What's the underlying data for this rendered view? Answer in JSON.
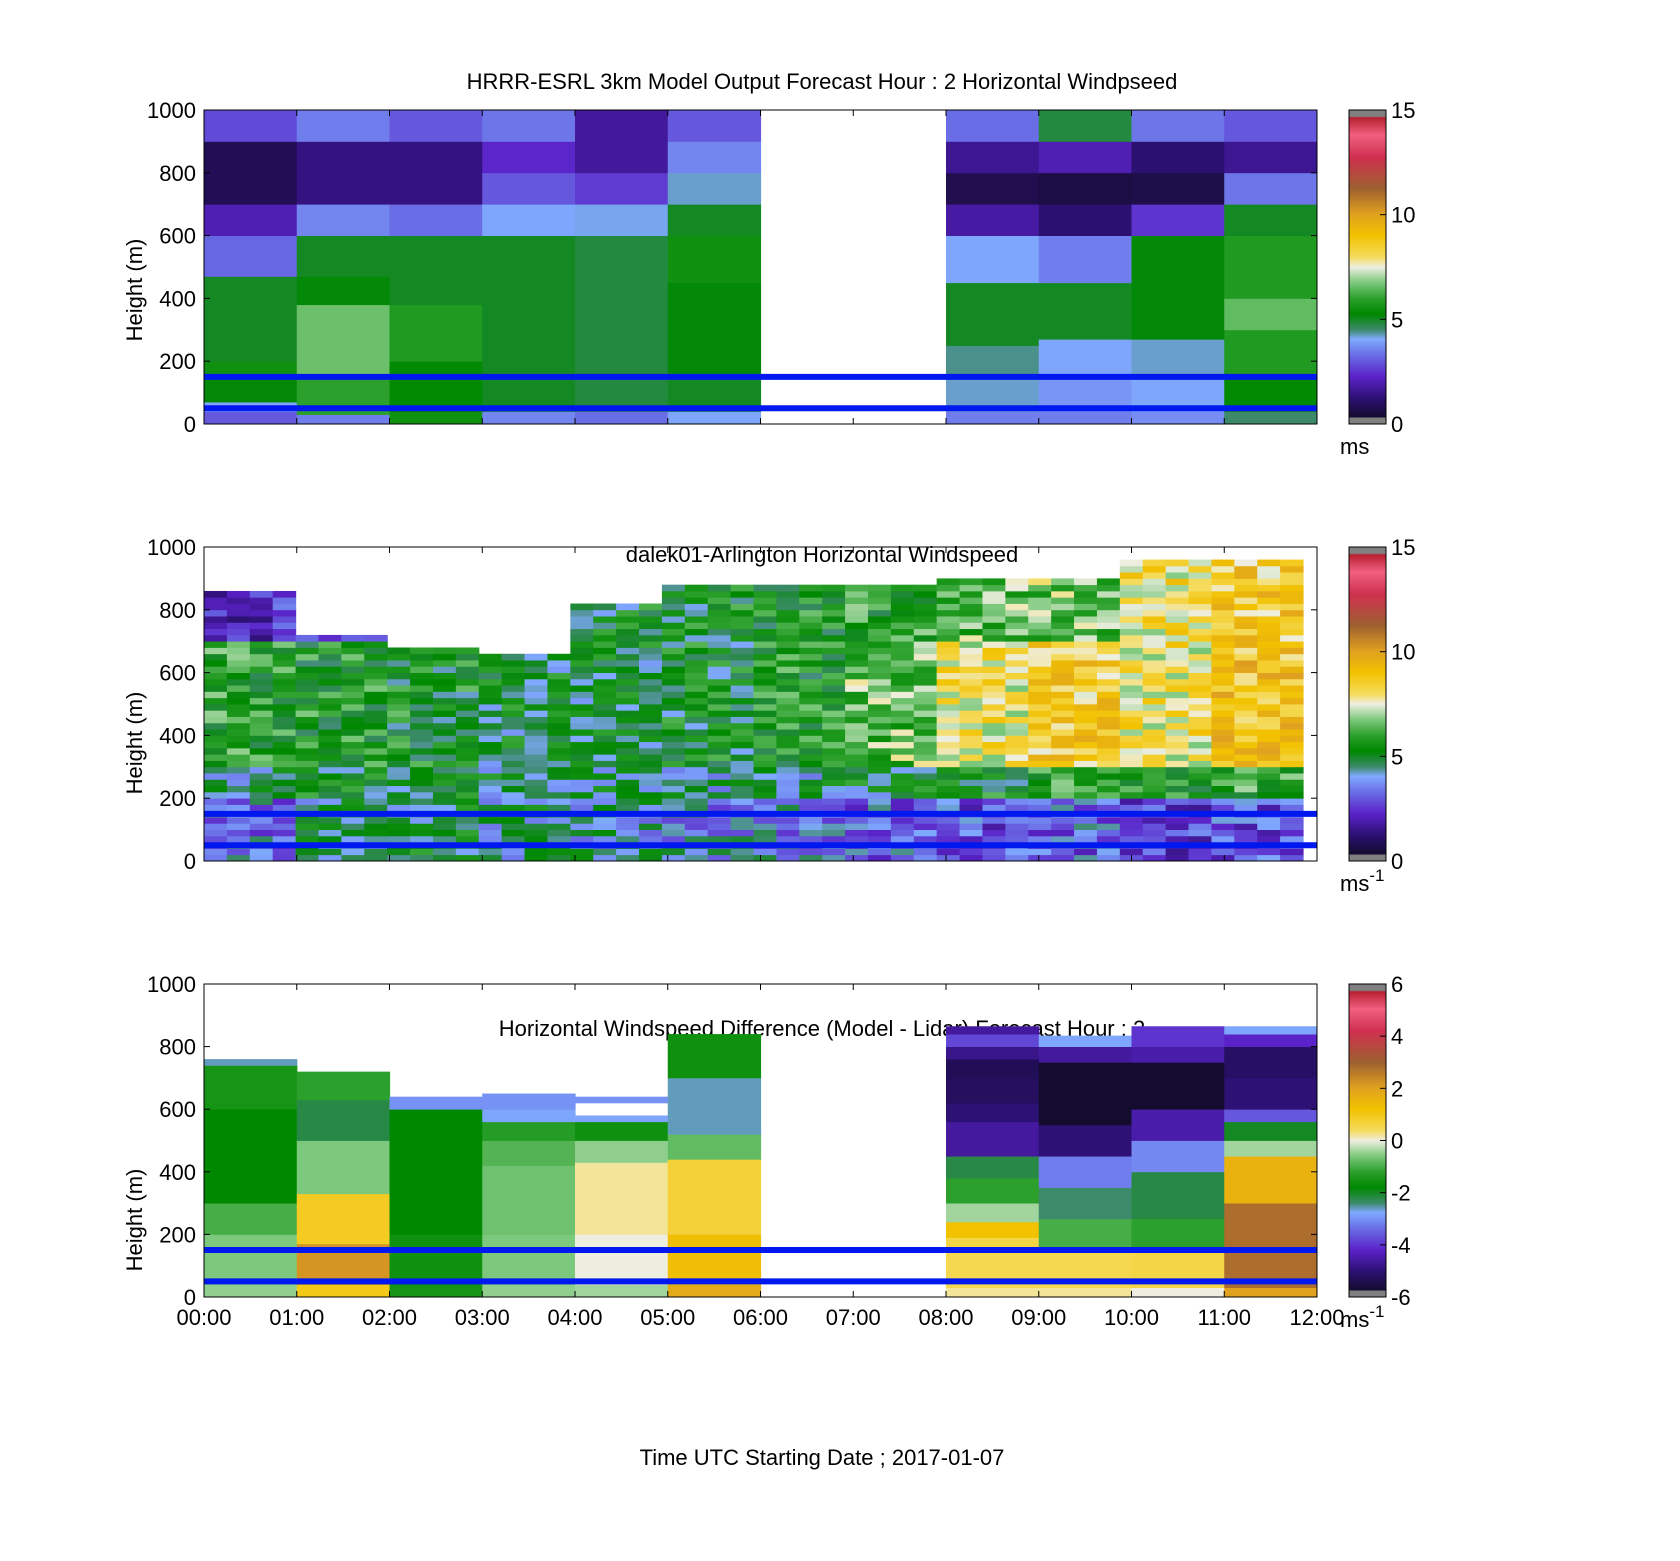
{
  "chart_data": [
    {
      "type": "heatmap",
      "title": "HRRR-ESRL 3km Model Output   Forecast Hour : 2 Horizontal Windpseed",
      "ylabel": "Height (m)",
      "xlabel": "",
      "ylim": [
        0,
        1000
      ],
      "yticks": [
        "0",
        "200",
        "400",
        "600",
        "800",
        "1000"
      ],
      "xticks": [],
      "colorbar": {
        "ticks": [
          "0",
          "5",
          "10",
          "15"
        ],
        "unit_base": "ms",
        "unit_sup": "",
        "range": [
          0,
          15
        ]
      },
      "reference_lines_m": [
        150,
        50
      ],
      "hours": [
        0,
        1,
        2,
        3,
        4,
        5,
        6,
        7,
        8,
        9,
        10,
        11
      ],
      "missing_hours": [
        6,
        7
      ],
      "columns": [
        [
          [
            0,
            40,
            3.0
          ],
          [
            40,
            70,
            4.0
          ],
          [
            70,
            150,
            5.2
          ],
          [
            150,
            200,
            5.5
          ],
          [
            200,
            470,
            5.0
          ],
          [
            470,
            600,
            3.2
          ],
          [
            600,
            700,
            2.0
          ],
          [
            700,
            900,
            0.7
          ],
          [
            900,
            1000,
            2.8
          ]
        ],
        [
          [
            0,
            30,
            3.5
          ],
          [
            30,
            150,
            6.0
          ],
          [
            150,
            380,
            6.6
          ],
          [
            380,
            470,
            5.2
          ],
          [
            470,
            600,
            5.0
          ],
          [
            600,
            700,
            3.6
          ],
          [
            700,
            900,
            1.4
          ],
          [
            900,
            1000,
            3.5
          ]
        ],
        [
          [
            0,
            40,
            5.5
          ],
          [
            40,
            200,
            5.3
          ],
          [
            200,
            380,
            5.8
          ],
          [
            380,
            600,
            5.0
          ],
          [
            600,
            700,
            3.3
          ],
          [
            700,
            900,
            1.4
          ],
          [
            900,
            1000,
            3.0
          ]
        ],
        [
          [
            0,
            40,
            3.6
          ],
          [
            40,
            150,
            5.0
          ],
          [
            150,
            600,
            5.0
          ],
          [
            600,
            700,
            4.0
          ],
          [
            700,
            800,
            3.0
          ],
          [
            800,
            900,
            2.3
          ],
          [
            900,
            1000,
            3.4
          ]
        ],
        [
          [
            0,
            40,
            3.3
          ],
          [
            40,
            150,
            4.8
          ],
          [
            150,
            600,
            4.8
          ],
          [
            600,
            700,
            4.1
          ],
          [
            700,
            800,
            2.6
          ],
          [
            800,
            900,
            1.7
          ],
          [
            900,
            1000,
            1.7
          ]
        ],
        [
          [
            0,
            40,
            4.0
          ],
          [
            40,
            150,
            5.0
          ],
          [
            150,
            450,
            5.2
          ],
          [
            450,
            600,
            5.5
          ],
          [
            600,
            700,
            5.0
          ],
          [
            700,
            800,
            4.2
          ],
          [
            800,
            900,
            3.6
          ],
          [
            900,
            1000,
            3.0
          ]
        ],
        [
          [
            0,
            40,
            3.5
          ],
          [
            40,
            150,
            4.2
          ],
          [
            150,
            250,
            4.4
          ],
          [
            250,
            450,
            5.0
          ],
          [
            450,
            600,
            4.0
          ],
          [
            600,
            700,
            1.8
          ],
          [
            700,
            800,
            0.6
          ],
          [
            800,
            900,
            1.6
          ],
          [
            900,
            1000,
            3.3
          ]
        ],
        [
          [
            0,
            40,
            3.5
          ],
          [
            40,
            150,
            3.8
          ],
          [
            150,
            270,
            4.0
          ],
          [
            270,
            450,
            5.0
          ],
          [
            450,
            600,
            3.5
          ],
          [
            600,
            700,
            1.2
          ],
          [
            700,
            800,
            0.4
          ],
          [
            800,
            900,
            2.0
          ],
          [
            900,
            1000,
            4.8
          ]
        ],
        [
          [
            0,
            40,
            3.7
          ],
          [
            40,
            150,
            4.0
          ],
          [
            150,
            270,
            4.2
          ],
          [
            270,
            600,
            5.2
          ],
          [
            600,
            700,
            2.5
          ],
          [
            700,
            800,
            0.5
          ],
          [
            800,
            900,
            1.2
          ],
          [
            900,
            1000,
            3.4
          ]
        ],
        [
          [
            0,
            40,
            4.5
          ],
          [
            40,
            150,
            5.3
          ],
          [
            150,
            300,
            5.8
          ],
          [
            300,
            400,
            6.5
          ],
          [
            400,
            600,
            5.8
          ],
          [
            600,
            700,
            5.0
          ],
          [
            700,
            800,
            3.4
          ],
          [
            800,
            900,
            1.6
          ],
          [
            900,
            1000,
            3.0
          ]
        ]
      ]
    },
    {
      "type": "heatmap",
      "title": "dalek01-Arlington  Horizontal Windspeed",
      "ylabel": "Height (m)",
      "xlabel": "",
      "ylim": [
        0,
        1000
      ],
      "yticks": [
        "0",
        "200",
        "400",
        "600",
        "800",
        "1000"
      ],
      "xticks": [],
      "colorbar": {
        "ticks": [
          "0",
          "5",
          "10",
          "15"
        ],
        "unit_base": "ms",
        "unit_sup": "-1",
        "range": [
          0,
          15
        ]
      },
      "reference_lines_m": [
        150,
        50
      ],
      "profile_columns": 48,
      "segments": [
        {
          "from": "00:00",
          "to": "01:00",
          "top_m": 850,
          "low_m": 3.5,
          "mid_m": 5.8,
          "high_m": 2.4
        },
        {
          "from": "01:00",
          "to": "02:00",
          "top_m": 720,
          "low_m": 4.6,
          "mid_m": 5.6,
          "high_m": 3.5
        },
        {
          "from": "02:00",
          "to": "03:00",
          "top_m": 670,
          "low_m": 5.0,
          "mid_m": 5.4,
          "high_m": 4.9
        },
        {
          "from": "03:00",
          "to": "04:00",
          "top_m": 650,
          "low_m": 4.6,
          "mid_m": 5.0,
          "high_m": 5.0
        },
        {
          "from": "04:00",
          "to": "05:00",
          "top_m": 820,
          "low_m": 4.3,
          "mid_m": 5.0,
          "high_m": 5.1
        },
        {
          "from": "05:00",
          "to": "06:00",
          "top_m": 880,
          "low_m": 3.8,
          "mid_m": 5.2,
          "high_m": 5.3
        },
        {
          "from": "06:00",
          "to": "07:00",
          "top_m": 880,
          "low_m": 3.7,
          "mid_m": 5.6,
          "high_m": 5.6
        },
        {
          "from": "07:00",
          "to": "08:00",
          "top_m": 880,
          "low_m": 3.3,
          "mid_m": 6.6,
          "high_m": 5.8
        },
        {
          "from": "08:00",
          "to": "09:00",
          "top_m": 900,
          "low_m": 3.0,
          "mid_m": 7.8,
          "high_m": 6.5
        },
        {
          "from": "09:00",
          "to": "10:00",
          "top_m": 900,
          "low_m": 3.3,
          "mid_m": 8.6,
          "high_m": 6.7
        },
        {
          "from": "10:00",
          "to": "11:00",
          "top_m": 950,
          "low_m": 2.8,
          "mid_m": 7.9,
          "high_m": 8.0
        },
        {
          "from": "11:00",
          "to": "12:00",
          "top_m": 950,
          "low_m": 3.0,
          "mid_m": 8.9,
          "high_m": 8.6
        }
      ]
    },
    {
      "type": "heatmap",
      "title": "Horizontal Windspeed Difference (Model - Lidar) Forecast Hour : 2",
      "ylabel": "Height (m)",
      "xlabel": "Time UTC  Starting Date ; 2017-01-07",
      "ylim": [
        0,
        1000
      ],
      "yticks": [
        "0",
        "200",
        "400",
        "600",
        "800",
        "1000"
      ],
      "xticks": [
        "00:00",
        "01:00",
        "02:00",
        "03:00",
        "04:00",
        "05:00",
        "06:00",
        "07:00",
        "08:00",
        "09:00",
        "10:00",
        "11:00",
        "12:00"
      ],
      "colorbar": {
        "ticks": [
          "-6",
          "-4",
          "-2",
          "0",
          "2",
          "4",
          "6"
        ],
        "unit_base": "ms",
        "unit_sup": "-1",
        "range": [
          -6,
          6
        ]
      },
      "reference_lines_m": [
        150,
        50
      ],
      "hours": [
        0,
        1,
        2,
        3,
        4,
        5,
        6,
        7,
        8,
        9,
        10,
        11
      ],
      "missing_hours": [
        6,
        7
      ],
      "columns": [
        [
          [
            0,
            40,
            -0.5
          ],
          [
            40,
            200,
            -0.6
          ],
          [
            200,
            300,
            -1.0
          ],
          [
            300,
            600,
            -1.8
          ],
          [
            600,
            740,
            -1.5
          ],
          [
            740,
            760,
            -2.6
          ]
        ],
        [
          [
            0,
            40,
            1.0
          ],
          [
            40,
            170,
            2.2
          ],
          [
            170,
            330,
            0.9
          ],
          [
            330,
            500,
            -0.6
          ],
          [
            500,
            630,
            -2.2
          ],
          [
            630,
            720,
            -1.2
          ]
        ],
        [
          [
            0,
            40,
            -1.5
          ],
          [
            40,
            200,
            -1.6
          ],
          [
            200,
            600,
            -1.8
          ],
          [
            600,
            620,
            -3.0
          ],
          [
            620,
            640,
            -3.0
          ]
        ],
        [
          [
            0,
            40,
            -0.5
          ],
          [
            40,
            200,
            -0.6
          ],
          [
            200,
            420,
            -0.7
          ],
          [
            420,
            500,
            -0.9
          ],
          [
            500,
            560,
            -1.3
          ],
          [
            560,
            600,
            -2.8
          ],
          [
            600,
            650,
            -3.0
          ]
        ],
        [
          [
            0,
            40,
            -0.4
          ],
          [
            40,
            200,
            0.0
          ],
          [
            200,
            430,
            0.2
          ],
          [
            430,
            500,
            -0.5
          ],
          [
            500,
            560,
            -1.6
          ],
          [
            560,
            580,
            -2.8
          ],
          [
            620,
            640,
            -3.0
          ]
        ],
        [
          [
            0,
            40,
            1.8
          ],
          [
            40,
            200,
            1.3
          ],
          [
            200,
            440,
            0.7
          ],
          [
            440,
            520,
            -0.8
          ],
          [
            520,
            700,
            -2.6
          ],
          [
            700,
            840,
            -1.6
          ]
        ],
        [
          [
            0,
            30,
            0.2
          ],
          [
            30,
            160,
            0.5
          ],
          [
            160,
            190,
            0.6
          ],
          [
            190,
            240,
            1.2
          ],
          [
            240,
            300,
            -0.4
          ],
          [
            300,
            380,
            -1.2
          ],
          [
            380,
            450,
            -2.2
          ],
          [
            450,
            560,
            -4.6
          ],
          [
            560,
            620,
            -5.0
          ],
          [
            620,
            700,
            -5.3
          ],
          [
            700,
            760,
            -5.4
          ],
          [
            760,
            800,
            -4.8
          ],
          [
            800,
            840,
            -3.8
          ],
          [
            840,
            865,
            -4.6
          ]
        ],
        [
          [
            0,
            30,
            0.2
          ],
          [
            30,
            150,
            0.5
          ],
          [
            150,
            250,
            -1.0
          ],
          [
            250,
            350,
            -2.4
          ],
          [
            350,
            450,
            -3.2
          ],
          [
            450,
            550,
            -5.0
          ],
          [
            550,
            750,
            -6.0
          ],
          [
            750,
            800,
            -4.6
          ],
          [
            800,
            835,
            -2.8
          ]
        ],
        [
          [
            0,
            30,
            0.0
          ],
          [
            30,
            150,
            0.6
          ],
          [
            150,
            250,
            -1.2
          ],
          [
            250,
            400,
            -2.2
          ],
          [
            400,
            500,
            -3.1
          ],
          [
            500,
            600,
            -4.5
          ],
          [
            600,
            750,
            -6.0
          ],
          [
            750,
            800,
            -4.5
          ],
          [
            800,
            865,
            -4.0
          ]
        ],
        [
          [
            0,
            30,
            2.0
          ],
          [
            30,
            150,
            2.8
          ],
          [
            150,
            300,
            2.8
          ],
          [
            300,
            450,
            1.6
          ],
          [
            450,
            500,
            -0.4
          ],
          [
            500,
            560,
            -2.0
          ],
          [
            560,
            600,
            -3.6
          ],
          [
            600,
            700,
            -5.0
          ],
          [
            700,
            800,
            -5.2
          ],
          [
            800,
            840,
            -4.2
          ],
          [
            840,
            865,
            -2.8
          ]
        ]
      ]
    }
  ]
}
